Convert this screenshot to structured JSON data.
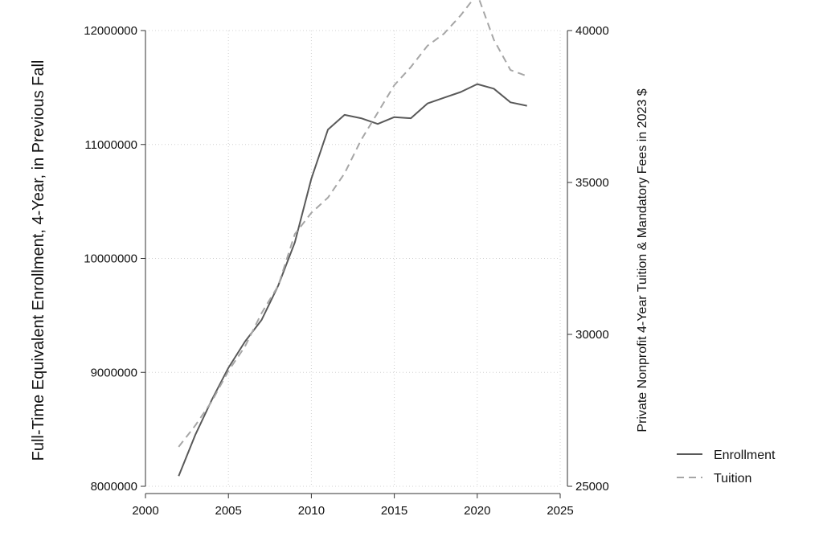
{
  "chart_data": {
    "type": "line",
    "title": "",
    "xlabel": "",
    "ylabel": "Full-Time Equivalent Enrollment, 4-Year, in Previous Fall",
    "y2label": "Private Nonprofit 4-Year Tuition & Mandatory Fees in 2023 $",
    "x": [
      2002,
      2003,
      2004,
      2005,
      2006,
      2007,
      2008,
      2009,
      2010,
      2011,
      2012,
      2013,
      2014,
      2015,
      2016,
      2017,
      2018,
      2019,
      2020,
      2021,
      2022,
      2023
    ],
    "xlim": [
      2000,
      2025
    ],
    "xticks": [
      2000,
      2005,
      2010,
      2015,
      2020,
      2025
    ],
    "ylim": [
      8000000,
      12000000
    ],
    "yticks": [
      8000000,
      9000000,
      10000000,
      11000000,
      12000000
    ],
    "y2lim": [
      25000,
      40000
    ],
    "y2ticks": [
      25000,
      30000,
      35000,
      40000
    ],
    "grid": true,
    "legend_position": "right",
    "series": [
      {
        "name": "Enrollment",
        "axis": "left",
        "color": "#595959",
        "style": "solid",
        "values": [
          8090000,
          8450000,
          8760000,
          9040000,
          9270000,
          9460000,
          9760000,
          10140000,
          10700000,
          11130000,
          11260000,
          11230000,
          11180000,
          11240000,
          11230000,
          11360000,
          11410000,
          11460000,
          11530000,
          11490000,
          11370000,
          11340000
        ]
      },
      {
        "name": "Tuition",
        "axis": "right",
        "color": "#a6a6a6",
        "style": "dashed",
        "values": [
          26300,
          27000,
          27800,
          28800,
          29600,
          30700,
          31600,
          33300,
          34000,
          34500,
          35300,
          36400,
          37300,
          38200,
          38800,
          39500,
          39900,
          40500,
          41200,
          39700,
          38700,
          38500
        ]
      }
    ]
  }
}
